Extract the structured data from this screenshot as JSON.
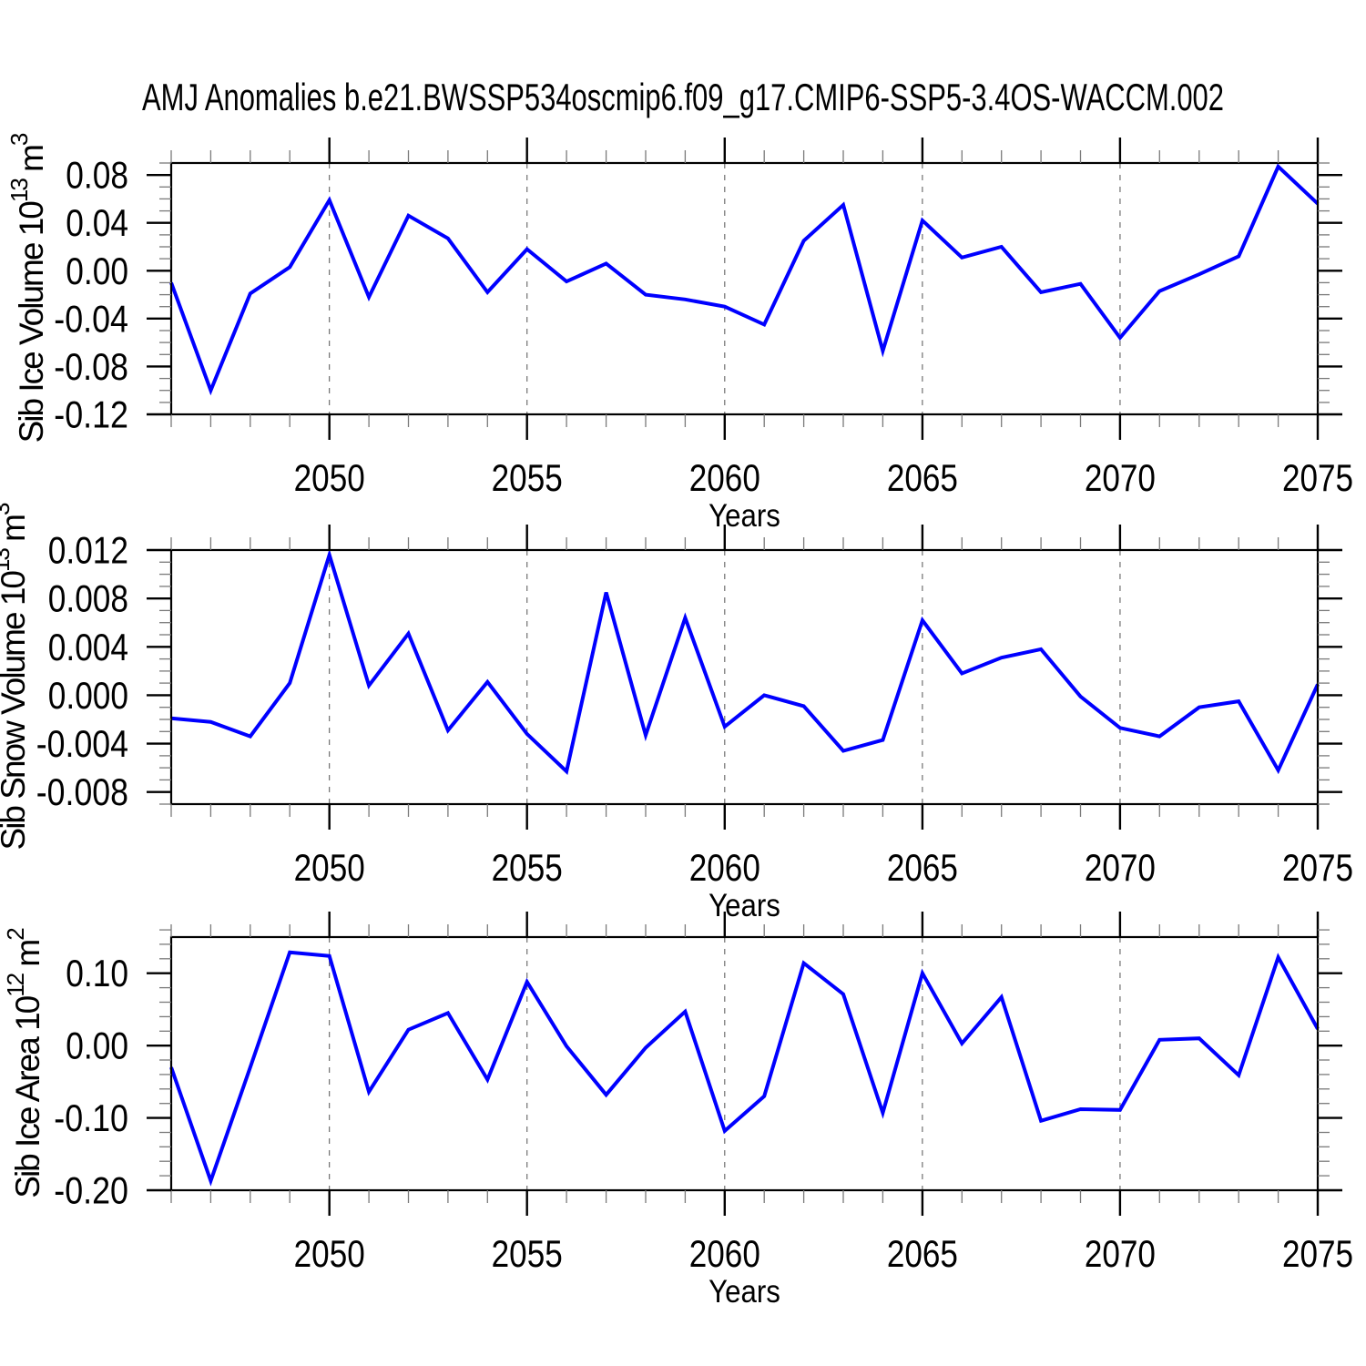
{
  "page": {
    "title": "AMJ Anomalies b.e21.BWSSP534oscmip6.f09_g17.CMIP6-SSP5-3.4OS-WACCM.002",
    "background": "#ffffff"
  },
  "style": {
    "line_color": "#0000ff",
    "frame_color": "#000000",
    "grid_color": "#6e6e6e",
    "minor_tick_color": "#7a7a7a",
    "text_color": "#000000"
  },
  "chart_common": {
    "xlabel": "Years",
    "x_range": [
      2046,
      2075
    ],
    "years": [
      2046,
      2047,
      2048,
      2049,
      2050,
      2051,
      2052,
      2053,
      2054,
      2055,
      2056,
      2057,
      2058,
      2059,
      2060,
      2061,
      2062,
      2063,
      2064,
      2065,
      2066,
      2067,
      2068,
      2069,
      2070,
      2071,
      2072,
      2073,
      2074,
      2075
    ],
    "xticks_labeled": [
      2050,
      2055,
      2060,
      2065,
      2070,
      2075
    ],
    "xtick_labels": [
      "2050",
      "2055",
      "2060",
      "2065",
      "2070",
      "2075"
    ],
    "grid_years": [
      2050,
      2055,
      2060,
      2065,
      2070
    ]
  },
  "chart_data": [
    {
      "type": "line",
      "name": "sib-ice-volume",
      "ylabel_text": "Sib Ice Volume 10^13 m^3",
      "ylabel_parts": [
        {
          "t": "Sib Ice Volume 10"
        },
        {
          "t": "13",
          "sup": true
        },
        {
          "t": " m"
        },
        {
          "t": "3",
          "sup": true
        }
      ],
      "ylim": [
        -0.12,
        0.09
      ],
      "yticks": [
        0.08,
        0.04,
        0.0,
        -0.04,
        -0.08,
        -0.12
      ],
      "ytick_labels": [
        "0.08",
        "0.04",
        "0.00",
        "-0.04",
        "-0.08",
        "-0.12"
      ],
      "yminor_step": 0.01,
      "values": [
        -0.01,
        -0.1,
        -0.019,
        0.003,
        0.059,
        -0.022,
        0.046,
        0.027,
        -0.018,
        0.018,
        -0.009,
        0.006,
        -0.02,
        -0.024,
        -0.03,
        -0.045,
        0.025,
        0.055,
        -0.067,
        0.042,
        0.011,
        0.02,
        -0.018,
        -0.011,
        -0.056,
        -0.017,
        -0.003,
        0.012,
        0.087,
        0.056
      ]
    },
    {
      "type": "line",
      "name": "sib-snow-volume",
      "ylabel_text": "Sib Snow Volume 10^13 m^3",
      "ylabel_parts": [
        {
          "t": "Sib Snow Volume 10"
        },
        {
          "t": "13",
          "sup": true
        },
        {
          "t": " m"
        },
        {
          "t": "3",
          "sup": true
        }
      ],
      "ylim": [
        -0.009,
        0.012
      ],
      "yticks": [
        0.012,
        0.008,
        0.004,
        0.0,
        -0.004,
        -0.008
      ],
      "ytick_labels": [
        "0.012",
        "0.008",
        "0.004",
        "0.000",
        "-0.004",
        "-0.008"
      ],
      "yminor_step": 0.001,
      "values": [
        -0.0019,
        -0.0022,
        -0.0034,
        0.001,
        0.0116,
        0.0008,
        0.0051,
        -0.0029,
        0.0011,
        -0.0032,
        -0.0063,
        0.0085,
        -0.0033,
        0.0064,
        -0.0026,
        0.0,
        -0.0009,
        -0.0046,
        -0.0037,
        0.0062,
        0.0018,
        0.0031,
        0.0038,
        -0.0001,
        -0.0027,
        -0.0034,
        -0.001,
        -0.0005,
        -0.0062,
        0.0009
      ]
    },
    {
      "type": "line",
      "name": "sib-ice-area",
      "ylabel_text": "Sib Ice Area 10^12 m^2",
      "ylabel_parts": [
        {
          "t": "Sib Ice Area 10"
        },
        {
          "t": "12",
          "sup": true
        },
        {
          "t": " m"
        },
        {
          "t": "2",
          "sup": true
        }
      ],
      "ylim": [
        -0.2,
        0.15
      ],
      "yticks": [
        0.1,
        0.0,
        -0.1,
        -0.2
      ],
      "ytick_labels": [
        "0.10",
        "0.00",
        "-0.10",
        "-0.20"
      ],
      "yminor_step": 0.02,
      "values": [
        -0.03,
        -0.187,
        -0.03,
        0.129,
        0.124,
        -0.064,
        0.022,
        0.045,
        -0.047,
        0.088,
        -0.001,
        -0.068,
        -0.003,
        0.047,
        -0.118,
        -0.07,
        0.114,
        0.071,
        -0.093,
        0.1,
        0.003,
        0.067,
        -0.104,
        -0.088,
        -0.089,
        0.008,
        0.01,
        -0.041,
        0.122,
        0.023
      ]
    }
  ]
}
